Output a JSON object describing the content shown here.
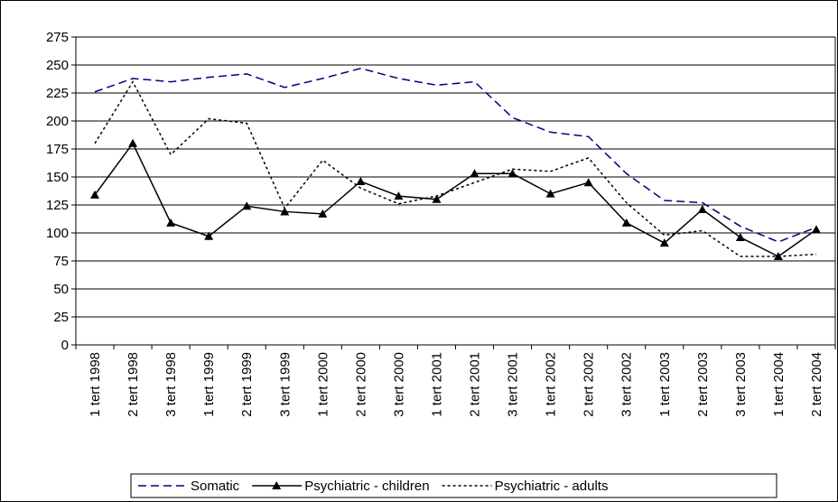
{
  "chart_data": {
    "type": "line",
    "categories": [
      "1 tert 1998",
      "2 tert 1998",
      "3 tert 1998",
      "1 tert 1999",
      "2 tert 1999",
      "3 tert 1999",
      "1 tert 2000",
      "2 tert 2000",
      "3 tert 2000",
      "1 tert 2001",
      "2 tert 2001",
      "3 tert 2001",
      "1 tert 2002",
      "2 tert 2002",
      "3 tert 2002",
      "1 tert 2003",
      "2 tert 2003",
      "3 tert 2003",
      "1 tert 2004",
      "2 tert 2004"
    ],
    "series": [
      {
        "name": "Somatic",
        "color": "#000080",
        "dash": "dashed",
        "marker": "none",
        "values": [
          226,
          238,
          235,
          239,
          242,
          230,
          238,
          247,
          238,
          232,
          235,
          203,
          190,
          186,
          153,
          129,
          127,
          106,
          92,
          105
        ]
      },
      {
        "name": "Psychiatric - children",
        "color": "#000000",
        "dash": "solid",
        "marker": "triangle",
        "values": [
          134,
          180,
          109,
          97,
          124,
          119,
          117,
          146,
          133,
          130,
          153,
          153,
          135,
          145,
          109,
          91,
          121,
          96,
          79,
          103
        ]
      },
      {
        "name": "Psychiatric - adults",
        "color": "#000000",
        "dash": "dotted",
        "marker": "none",
        "values": [
          180,
          235,
          170,
          202,
          198,
          122,
          165,
          140,
          126,
          133,
          145,
          157,
          155,
          167,
          127,
          98,
          102,
          79,
          79,
          81
        ]
      }
    ],
    "ylim": [
      0,
      275
    ],
    "yticks": [
      0,
      25,
      50,
      75,
      100,
      125,
      150,
      175,
      200,
      225,
      250,
      275
    ],
    "grid": true,
    "legend": "bottom"
  }
}
